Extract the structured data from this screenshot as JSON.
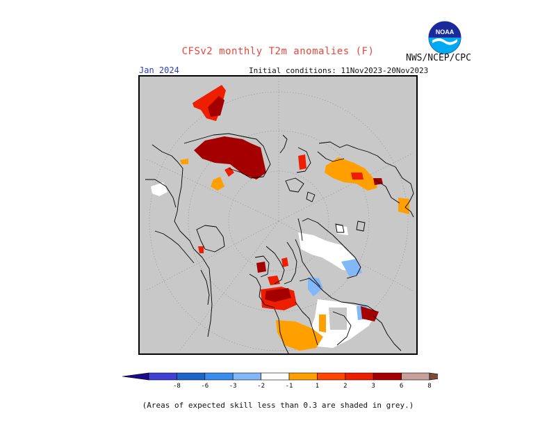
{
  "header": {
    "title": "CFSv2 monthly T2m anomalies (F)",
    "agency": "NWS/NCEP/CPC",
    "logo_text": "NOAA",
    "month": "Jan 2024",
    "initial_conditions": "Initial conditions: 11Nov2023-20Nov2023"
  },
  "legend": {
    "tick_labels": [
      "-8",
      "-6",
      "-3",
      "-2",
      "-1",
      "1",
      "2",
      "3",
      "6",
      "8"
    ],
    "colors": [
      "#1c0a8c",
      "#3f3fd4",
      "#1f64c8",
      "#3a8cf0",
      "#82b8f8",
      "#ffffff",
      "#ffa000",
      "#ff4500",
      "#ee1e00",
      "#a50000",
      "#c8a09a",
      "#7a4a3a"
    ]
  },
  "footnote": "(Areas of expected skill less than 0.3 are shaded in grey.)",
  "map": {
    "background_color": "#c8c8c8",
    "land_outline_color": "#000000"
  }
}
